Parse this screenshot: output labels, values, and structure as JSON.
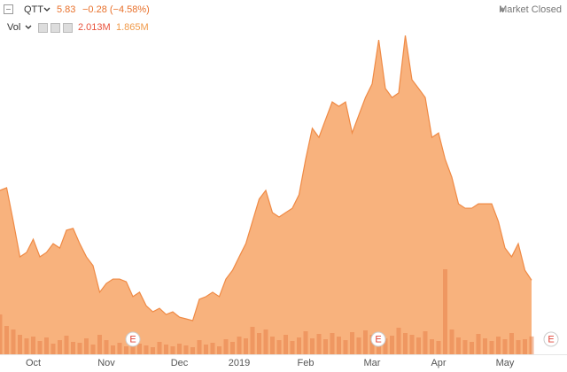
{
  "header": {
    "symbol": "QTT",
    "last": "5.83",
    "change": "−0.28 (−4.58%)",
    "status": "Market Closed",
    "volume_label": "Vol",
    "volume_last": "2.013M",
    "volume_avg": "1.865M"
  },
  "earnings_markers": [
    "E",
    "E",
    "E"
  ],
  "chart_data": {
    "type": "area",
    "categories": [
      null,
      null,
      null,
      null,
      null,
      "Oct",
      null,
      null,
      null,
      null,
      null,
      null,
      null,
      null,
      null,
      null,
      "Nov",
      null,
      null,
      null,
      null,
      null,
      null,
      null,
      null,
      null,
      null,
      "Dec",
      null,
      null,
      null,
      null,
      null,
      null,
      null,
      null,
      "2019",
      null,
      null,
      null,
      null,
      null,
      null,
      null,
      null,
      null,
      "Feb",
      null,
      null,
      null,
      null,
      null,
      null,
      null,
      null,
      null,
      "Mar",
      null,
      null,
      null,
      null,
      null,
      null,
      null,
      null,
      null,
      "Apr",
      null,
      null,
      null,
      null,
      null,
      null,
      null,
      null,
      null,
      "May",
      null,
      null,
      null,
      null
    ],
    "series": [
      {
        "name": "QTT",
        "color": "#f7a466",
        "values": [
          8.9,
          8.99,
          7.84,
          6.63,
          6.78,
          7.23,
          6.63,
          6.78,
          7.08,
          6.93,
          7.54,
          7.6,
          7.08,
          6.63,
          6.33,
          5.42,
          5.72,
          5.87,
          5.87,
          5.78,
          5.27,
          5.42,
          4.96,
          4.75,
          4.87,
          4.66,
          4.75,
          4.57,
          4.51,
          4.45,
          5.18,
          5.27,
          5.42,
          5.27,
          5.87,
          6.17,
          6.63,
          7.08,
          7.84,
          8.6,
          8.9,
          8.14,
          7.99,
          8.14,
          8.29,
          8.75,
          9.96,
          11.02,
          10.71,
          11.32,
          11.92,
          11.77,
          11.92,
          10.86,
          11.47,
          12.07,
          12.53,
          14.04,
          12.38,
          12.07,
          12.23,
          14.19,
          12.68,
          12.38,
          12.07,
          10.71,
          10.86,
          9.96,
          9.35,
          8.44,
          8.29,
          8.29,
          8.44,
          8.44,
          8.44,
          7.84,
          6.93,
          6.63,
          7.08,
          6.17,
          5.83
        ]
      },
      {
        "name": "Vol",
        "color": "#e8824a",
        "axis": "y2",
        "values": [
          4.5,
          3.2,
          2.8,
          2.2,
          1.8,
          2.0,
          1.5,
          1.9,
          1.2,
          1.6,
          2.1,
          1.4,
          1.3,
          1.8,
          1.1,
          2.2,
          1.6,
          1.0,
          1.3,
          0.9,
          1.5,
          1.2,
          1.0,
          0.8,
          1.4,
          1.1,
          0.9,
          1.2,
          1.0,
          0.8,
          1.6,
          1.1,
          1.3,
          0.9,
          1.7,
          1.4,
          2.0,
          1.8,
          3.1,
          2.4,
          2.8,
          2.0,
          1.6,
          2.2,
          1.5,
          1.9,
          2.6,
          1.8,
          2.3,
          1.7,
          2.4,
          2.0,
          1.6,
          2.5,
          1.9,
          2.7,
          2.2,
          2.0,
          1.8,
          2.1,
          3.0,
          2.4,
          2.2,
          1.9,
          2.6,
          1.7,
          1.5,
          9.6,
          2.8,
          1.9,
          1.6,
          1.4,
          2.3,
          1.8,
          1.5,
          2.0,
          1.7,
          2.4,
          1.6,
          1.7,
          2.013
        ]
      }
    ],
    "ylim": [
      3.3,
      15.1
    ],
    "y2lim": [
      0,
      39
    ]
  }
}
